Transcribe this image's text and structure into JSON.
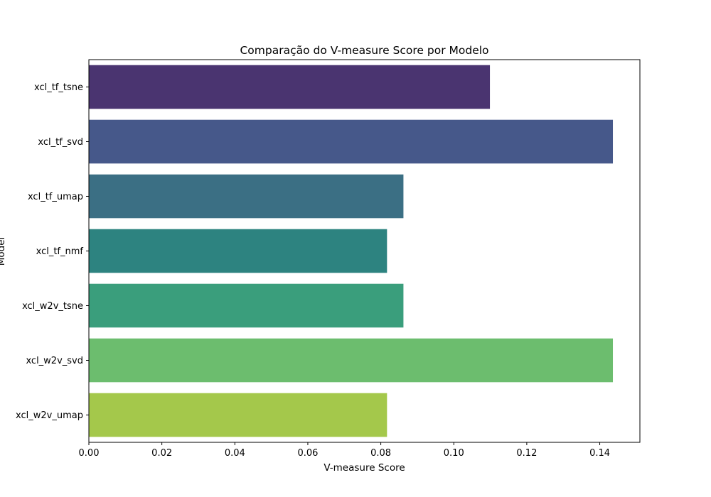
{
  "chart_data": {
    "type": "bar",
    "orientation": "horizontal",
    "title": "Comparação do V-measure Score por Modelo",
    "xlabel": "V-measure Score",
    "ylabel": "Model",
    "categories": [
      "xcl_tf_tsne",
      "xcl_tf_svd",
      "xcl_tf_umap",
      "xcl_tf_nmf",
      "xcl_w2v_tsne",
      "xcl_w2v_svd",
      "xcl_w2v_umap"
    ],
    "values": [
      0.1099,
      0.1436,
      0.0862,
      0.0817,
      0.0862,
      0.1436,
      0.0817
    ],
    "colors": [
      "#4a3470",
      "#46588a",
      "#3b6f84",
      "#2d8380",
      "#3a9e7c",
      "#6cbd6e",
      "#a4c84b"
    ],
    "xlim": [
      0,
      0.151
    ],
    "xticks": [
      0.0,
      0.02,
      0.04,
      0.06,
      0.08,
      0.1,
      0.12,
      0.14
    ],
    "xtick_labels": [
      "0.00",
      "0.02",
      "0.04",
      "0.06",
      "0.08",
      "0.10",
      "0.12",
      "0.14"
    ],
    "grid": false,
    "legend": "none"
  }
}
